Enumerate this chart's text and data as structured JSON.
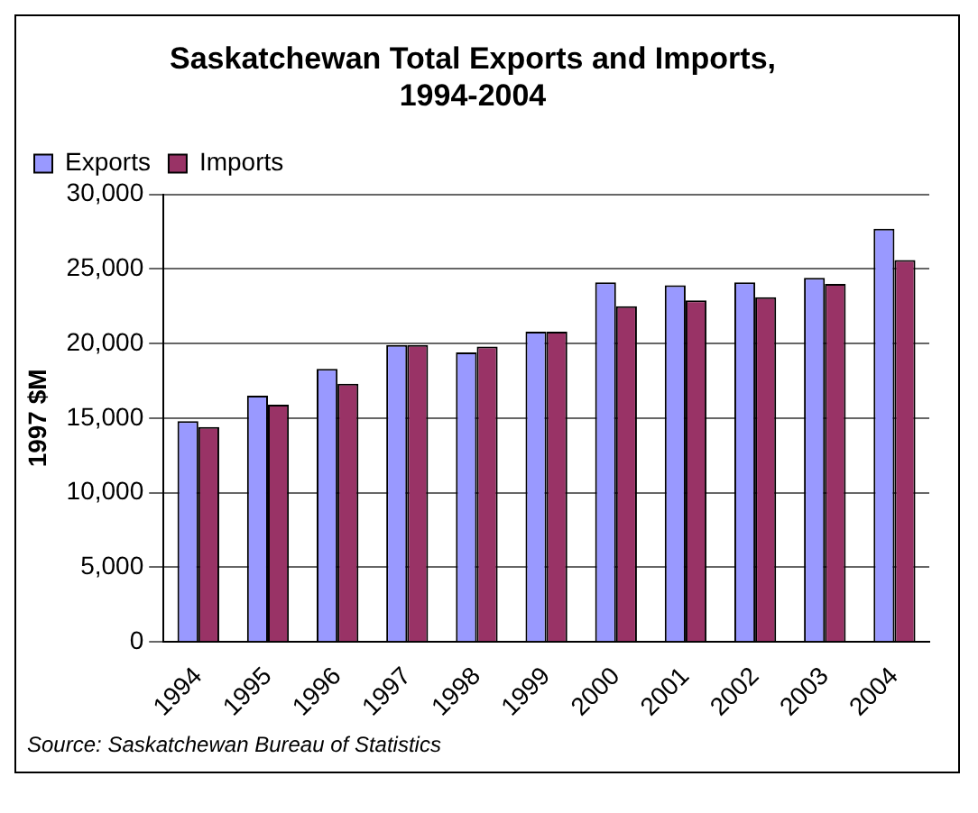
{
  "chart_data": {
    "type": "bar",
    "title": "Saskatchewan Total Exports and Imports, 1994-2004",
    "ylabel": "1997 $M",
    "categories": [
      "1994",
      "1995",
      "1996",
      "1997",
      "1998",
      "1999",
      "2000",
      "2001",
      "2002",
      "2003",
      "2004"
    ],
    "series": [
      {
        "name": "Exports",
        "color": "#9999ff",
        "values": [
          14800,
          16500,
          18300,
          19900,
          19400,
          20800,
          24100,
          23900,
          24100,
          24400,
          27700
        ]
      },
      {
        "name": "Imports",
        "color": "#993366",
        "values": [
          14400,
          15900,
          17300,
          19900,
          19800,
          20800,
          22500,
          22900,
          23100,
          24000,
          25600
        ]
      }
    ],
    "ylim": [
      0,
      30000
    ],
    "yticks": [
      {
        "value": 0,
        "label": "0"
      },
      {
        "value": 5000,
        "label": "5,000"
      },
      {
        "value": 10000,
        "label": "10,000"
      },
      {
        "value": 15000,
        "label": "15,000"
      },
      {
        "value": 20000,
        "label": "20,000"
      },
      {
        "value": 25000,
        "label": "25,000"
      },
      {
        "value": 30000,
        "label": "30,000"
      }
    ],
    "grid": "y",
    "legend": "top left",
    "annotations": [
      "Source: Saskatchewan Bureau of Statistics"
    ]
  }
}
